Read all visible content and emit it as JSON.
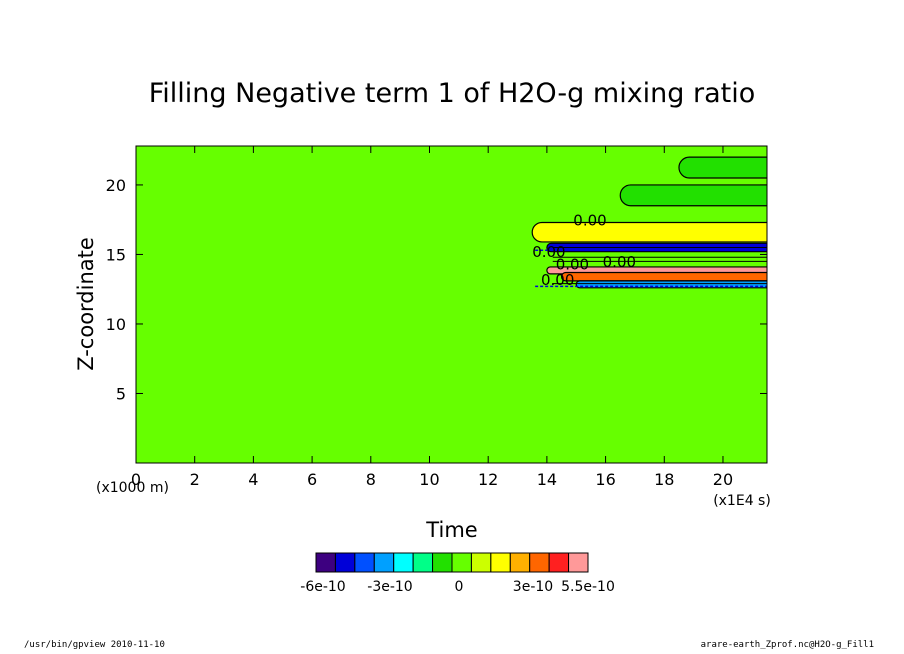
{
  "chart_data": {
    "type": "heatmap",
    "title": "Filling Negative term 1 of H2O-g mixing ratio",
    "xlabel": "Time",
    "ylabel": "Z-coordinate",
    "x_unit": "(x1E4 s)",
    "y_unit": "(x1000 m)",
    "xlim": [
      0,
      21.5
    ],
    "ylim": [
      0,
      22.8
    ],
    "x_ticks": [
      "0",
      "2",
      "4",
      "6",
      "8",
      "10",
      "12",
      "14",
      "16",
      "18",
      "20"
    ],
    "y_ticks": [
      "5",
      "10",
      "15",
      "20"
    ],
    "x_tick_values": [
      0,
      2,
      4,
      6,
      8,
      10,
      12,
      14,
      16,
      18,
      20
    ],
    "y_tick_values": [
      5,
      10,
      15,
      20
    ],
    "background_value": 0,
    "regions": [
      {
        "x_start": 18.5,
        "x_end": 21.5,
        "z_bottom": 20.5,
        "z_top": 22.0,
        "level": "0.5e-10"
      },
      {
        "x_start": 16.5,
        "x_end": 21.5,
        "z_bottom": 18.5,
        "z_top": 20.0,
        "level": "0.5e-10"
      },
      {
        "x_start": 13.5,
        "x_end": 21.5,
        "z_bottom": 15.9,
        "z_top": 17.3,
        "level": "3e-10"
      },
      {
        "x_start": 14.0,
        "x_end": 21.5,
        "z_bottom": 13.6,
        "z_top": 14.1,
        "level": "5.5e-10"
      },
      {
        "x_start": 14.5,
        "x_end": 21.5,
        "z_bottom": 13.1,
        "z_top": 13.7,
        "level": "4e-10"
      },
      {
        "x_start": 15.0,
        "x_end": 21.5,
        "z_bottom": 12.6,
        "z_top": 13.1,
        "level": "-1.5e-10"
      },
      {
        "x_start": 14.0,
        "x_end": 21.5,
        "z_bottom": 15.2,
        "z_top": 15.8,
        "level": "-4e-10"
      }
    ],
    "contour_labels": [
      "0.00",
      "0.00",
      "0.00",
      "0.00",
      "0.00"
    ],
    "colorbar": {
      "colors": [
        "#3d0080",
        "#0000d8",
        "#0050ff",
        "#00a0ff",
        "#00ffff",
        "#00ff88",
        "#22e000",
        "#66ff00",
        "#ccff00",
        "#ffff00",
        "#ffb000",
        "#ff6600",
        "#ff2020",
        "#ff9999"
      ],
      "tick_labels": [
        "-6e-10",
        "-3e-10",
        "0",
        "3e-10",
        "5.5e-10"
      ]
    }
  },
  "footer": {
    "left": "/usr/bin/gpview   2010-11-10",
    "right": "arare-earth_Zprof.nc@H2O-g_Fill1"
  }
}
